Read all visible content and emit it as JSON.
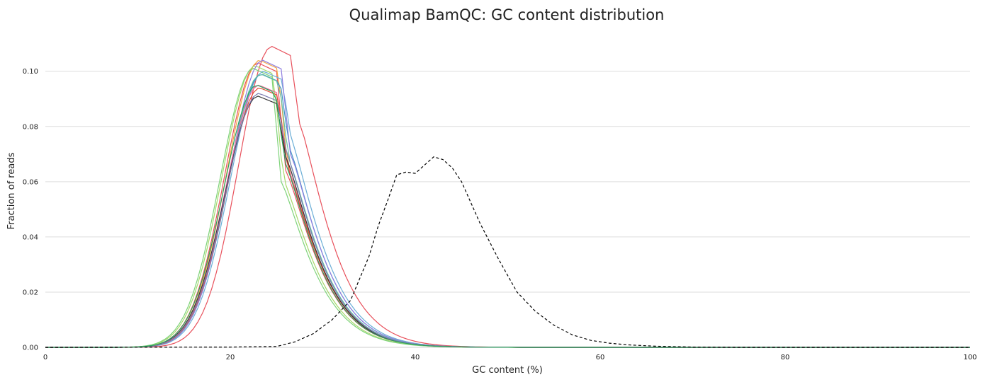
{
  "chart_data": {
    "type": "line",
    "title": "Qualimap BamQC: GC content distribution",
    "xlabel": "GC content (%)",
    "ylabel": "Fraction of reads",
    "xlim": [
      0,
      100
    ],
    "ylim": [
      0,
      0.113
    ],
    "xticks": [
      0,
      20,
      40,
      60,
      80,
      100
    ],
    "yticks": [
      0.0,
      0.02,
      0.04,
      0.06,
      0.08,
      0.1
    ],
    "ytick_labels": [
      "0.00",
      "0.02",
      "0.04",
      "0.06",
      "0.08",
      "0.10"
    ],
    "grid": "horizontal",
    "legend": "none",
    "series": [
      {
        "color": "#e8505b",
        "peak": 0.109,
        "shift": 1.5,
        "drop": 0.081
      },
      {
        "color": "#e8505b",
        "peak": 0.103,
        "shift": 0,
        "drop": 0.064
      },
      {
        "color": "#f4a742",
        "peak": 0.104,
        "shift": 0.2,
        "drop": 0.065
      },
      {
        "color": "#a6d96a",
        "peak": 0.102,
        "shift": -0.3,
        "drop": 0.061
      },
      {
        "color": "#7ed37a",
        "peak": 0.101,
        "shift": -0.5,
        "drop": 0.06
      },
      {
        "color": "#6baed6",
        "peak": 0.1,
        "shift": 0.6,
        "drop": 0.075
      },
      {
        "color": "#4393c3",
        "peak": 0.099,
        "shift": 0.4,
        "drop": 0.072
      },
      {
        "color": "#8f7fe0",
        "peak": 0.104,
        "shift": 0.5,
        "drop": 0.07
      },
      {
        "color": "#66c2a5",
        "peak": 0.099,
        "shift": 0.3,
        "drop": 0.068
      },
      {
        "color": "#f768a1",
        "peak": 0.095,
        "shift": 0.1,
        "drop": 0.066
      },
      {
        "color": "#e34a33",
        "peak": 0.094,
        "shift": 0.2,
        "drop": 0.064
      },
      {
        "color": "#333333",
        "peak": 0.091,
        "shift": 0,
        "drop": 0.069
      },
      {
        "color": "#7b7bb0",
        "peak": 0.092,
        "shift": 0.1,
        "drop": 0.07
      },
      {
        "color": "#2ca25f",
        "peak": 0.095,
        "shift": -0.1,
        "drop": 0.067
      }
    ],
    "reference": {
      "style": "dashed",
      "color": "#000000",
      "x": [
        0,
        20,
        25,
        27,
        29,
        31,
        33,
        35,
        36,
        37,
        38,
        39,
        40,
        41,
        42,
        43,
        44,
        45,
        47,
        49,
        51,
        53,
        55,
        57,
        59,
        61,
        63,
        66,
        70,
        75,
        80,
        100
      ],
      "y": [
        0,
        0.0001,
        0.0003,
        0.002,
        0.005,
        0.01,
        0.017,
        0.033,
        0.044,
        0.053,
        0.0625,
        0.0635,
        0.063,
        0.066,
        0.069,
        0.068,
        0.065,
        0.06,
        0.045,
        0.032,
        0.02,
        0.013,
        0.008,
        0.0045,
        0.0025,
        0.0015,
        0.0009,
        0.0004,
        0.0001,
        0,
        0,
        0
      ]
    }
  }
}
